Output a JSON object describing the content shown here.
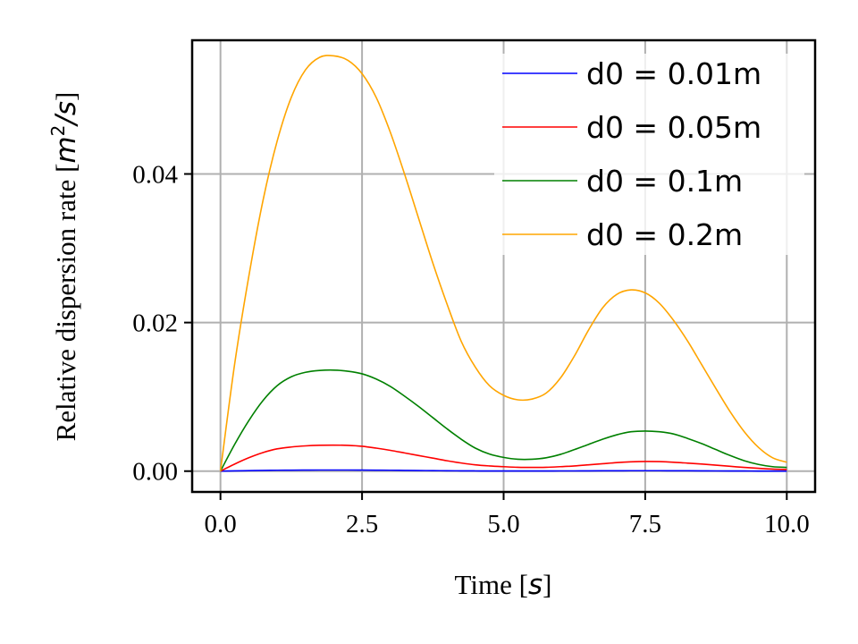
{
  "chart_data": {
    "type": "line",
    "xlabel": {
      "text": "Time [",
      "math": "s",
      "suffix": "]"
    },
    "ylabel": {
      "text": "Relative dispersion rate [",
      "math": "m",
      "sup": "2",
      "math2": "/s",
      "suffix": "]"
    },
    "xlim": [
      -0.5,
      10.5
    ],
    "ylim": [
      -0.0028,
      0.058
    ],
    "xticks": [
      0.0,
      2.5,
      5.0,
      7.5,
      10.0
    ],
    "xtick_labels": [
      "0.0",
      "2.5",
      "5.0",
      "7.5",
      "10.0"
    ],
    "yticks": [
      0.0,
      0.02,
      0.04
    ],
    "ytick_labels": [
      "0.00",
      "0.02",
      "0.04"
    ],
    "grid": true,
    "legend_position": "top-right",
    "x": [
      0.0,
      0.25,
      0.5,
      0.75,
      1.0,
      1.25,
      1.5,
      1.75,
      2.0,
      2.25,
      2.5,
      2.75,
      3.0,
      3.25,
      3.5,
      3.75,
      4.0,
      4.25,
      4.5,
      4.75,
      5.0,
      5.25,
      5.5,
      5.75,
      6.0,
      6.25,
      6.5,
      6.75,
      7.0,
      7.25,
      7.5,
      7.75,
      8.0,
      8.25,
      8.5,
      8.75,
      9.0,
      9.25,
      9.5,
      9.75,
      10.0
    ],
    "series": [
      {
        "name": "d0 = 0.01m",
        "color": "#0000ff",
        "values": [
          0.0,
          4e-05,
          7e-05,
          0.0001,
          0.00012,
          0.00013,
          0.00014,
          0.00015,
          0.00015,
          0.00015,
          0.00014,
          0.00013,
          0.00012,
          0.0001,
          8e-05,
          7e-05,
          5e-05,
          4e-05,
          3e-05,
          2e-05,
          2e-05,
          2e-05,
          2e-05,
          2e-05,
          3e-05,
          3e-05,
          4e-05,
          5e-05,
          5e-05,
          6e-05,
          6e-05,
          6e-05,
          5e-05,
          5e-05,
          4e-05,
          3e-05,
          2e-05,
          2e-05,
          1e-05,
          1e-05,
          1e-05
        ]
      },
      {
        "name": "d0 = 0.05m",
        "color": "#ff0000",
        "values": [
          0.0,
          0.00095,
          0.0018,
          0.0025,
          0.003,
          0.00325,
          0.0034,
          0.00348,
          0.0035,
          0.00347,
          0.00335,
          0.0031,
          0.0028,
          0.00245,
          0.0021,
          0.00175,
          0.0014,
          0.0011,
          0.00085,
          0.0007,
          0.0006,
          0.00052,
          0.0005,
          0.00052,
          0.0006,
          0.0007,
          0.00085,
          0.001,
          0.00115,
          0.00125,
          0.0013,
          0.00128,
          0.0012,
          0.00108,
          0.00095,
          0.0008,
          0.00065,
          0.0005,
          0.00038,
          0.00028,
          0.00022
        ]
      },
      {
        "name": "d0 = 0.1m",
        "color": "#008000",
        "values": [
          0.0,
          0.0036,
          0.0068,
          0.0095,
          0.0115,
          0.0127,
          0.0133,
          0.01355,
          0.0136,
          0.01345,
          0.0131,
          0.0124,
          0.0114,
          0.0101,
          0.0087,
          0.0072,
          0.0057,
          0.0043,
          0.0031,
          0.0023,
          0.00185,
          0.0016,
          0.0016,
          0.0018,
          0.00225,
          0.0029,
          0.0036,
          0.0043,
          0.0049,
          0.0053,
          0.0054,
          0.0053,
          0.005,
          0.0044,
          0.0037,
          0.0029,
          0.0021,
          0.0014,
          0.0009,
          0.0006,
          0.0005
        ]
      },
      {
        "name": "d0 = 0.2m",
        "color": "#ffa500",
        "values": [
          0.0,
          0.0144,
          0.0262,
          0.0364,
          0.0444,
          0.0503,
          0.054,
          0.0557,
          0.0559,
          0.0553,
          0.0535,
          0.0503,
          0.0456,
          0.04,
          0.034,
          0.028,
          0.0225,
          0.0175,
          0.014,
          0.0115,
          0.0102,
          0.0096,
          0.0097,
          0.0105,
          0.0125,
          0.0155,
          0.019,
          0.022,
          0.0238,
          0.0244,
          0.024,
          0.0226,
          0.0203,
          0.0175,
          0.0143,
          0.0111,
          0.008,
          0.0053,
          0.0032,
          0.0018,
          0.0012
        ]
      }
    ]
  }
}
